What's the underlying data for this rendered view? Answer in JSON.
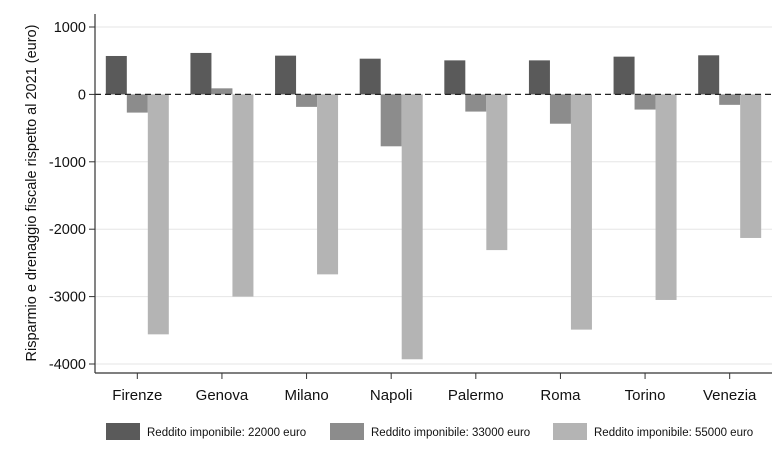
{
  "chart_data": {
    "type": "bar",
    "title": "",
    "xlabel": "",
    "ylabel": "Risparmio e drenaggio fiscale rispetto al 2021 (euro)",
    "ylim": [
      -4000,
      1000
    ],
    "yticks": [
      1000,
      0,
      -1000,
      -2000,
      -3000,
      -4000
    ],
    "categories": [
      "Firenze",
      "Genova",
      "Milano",
      "Napoli",
      "Palermo",
      "Roma",
      "Torino",
      "Venezia"
    ],
    "series": [
      {
        "name": "Reddito imponibile: 22000 euro",
        "color": "#5a5a5a",
        "values": [
          570,
          615,
          575,
          530,
          505,
          505,
          560,
          580
        ]
      },
      {
        "name": "Reddito imponibile: 33000 euro",
        "color": "#8c8c8c",
        "values": [
          -270,
          90,
          -185,
          -770,
          -255,
          -435,
          -225,
          -155
        ]
      },
      {
        "name": "Reddito imponibile: 55000 euro",
        "color": "#b4b4b4",
        "values": [
          -3560,
          -3000,
          -2670,
          -3930,
          -2310,
          -3490,
          -3050,
          -2130
        ]
      }
    ],
    "grid": true,
    "zero_line": "dashed",
    "legend_position": "bottom"
  }
}
